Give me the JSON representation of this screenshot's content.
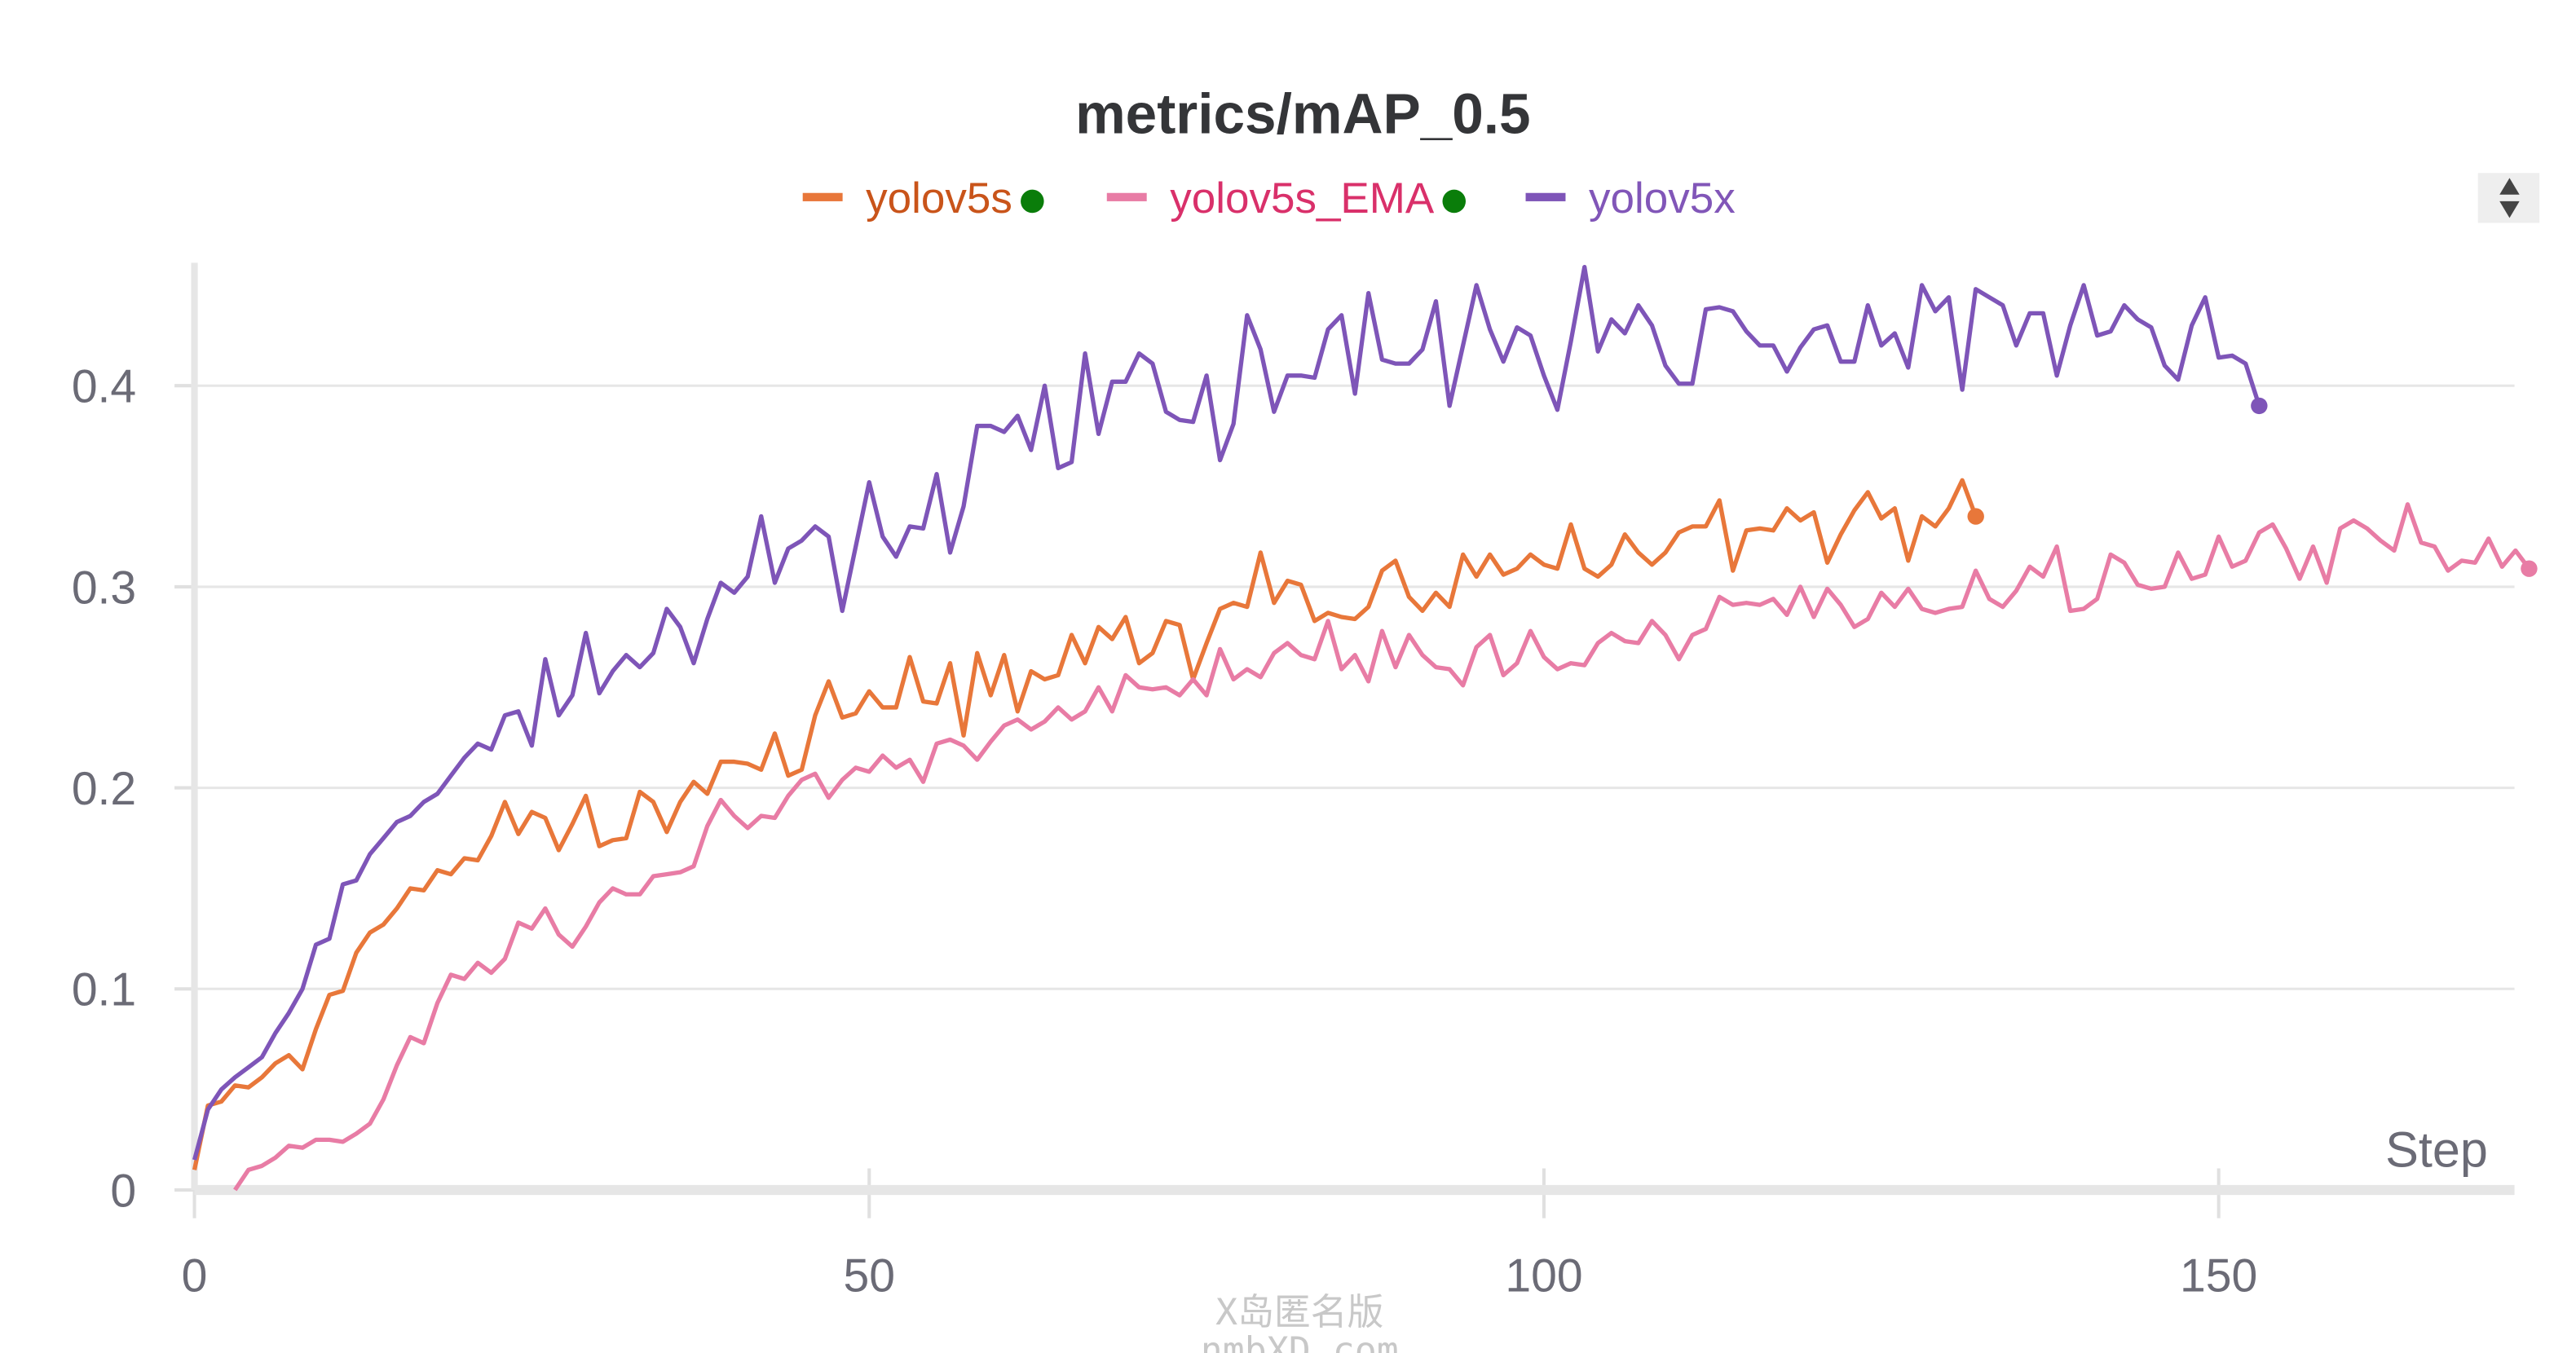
{
  "chart_data": {
    "type": "line",
    "title": "metrics/mAP_0.5",
    "xlabel": "Step",
    "ylabel": "",
    "xlim": [
      0,
      172
    ],
    "ylim": [
      0,
      0.46
    ],
    "xticks": [
      0,
      50,
      100,
      150
    ],
    "yticks": [
      0,
      0.1,
      0.2,
      0.3,
      0.4
    ],
    "ytick_labels": [
      "0",
      "0.1",
      "0.2",
      "0.3",
      "0.4"
    ],
    "xtick_labels": [
      "0",
      "50",
      "100",
      "150"
    ],
    "grid": true,
    "legend": "top-center",
    "series": [
      {
        "name": "yolov5s",
        "color": "#e8773a",
        "text_color": "#c9541a",
        "status_dot": "#0a7d0a",
        "start": 0,
        "values": [
          0.01,
          0.042,
          0.044,
          0.052,
          0.051,
          0.056,
          0.063,
          0.067,
          0.06,
          0.08,
          0.097,
          0.099,
          0.118,
          0.128,
          0.132,
          0.14,
          0.15,
          0.149,
          0.159,
          0.157,
          0.165,
          0.164,
          0.176,
          0.193,
          0.177,
          0.188,
          0.185,
          0.169,
          0.182,
          0.196,
          0.171,
          0.174,
          0.175,
          0.198,
          0.193,
          0.178,
          0.193,
          0.203,
          0.197,
          0.213,
          0.213,
          0.212,
          0.209,
          0.227,
          0.206,
          0.209,
          0.236,
          0.253,
          0.235,
          0.237,
          0.248,
          0.24,
          0.24,
          0.265,
          0.243,
          0.242,
          0.262,
          0.226,
          0.267,
          0.246,
          0.266,
          0.238,
          0.258,
          0.254,
          0.256,
          0.276,
          0.262,
          0.28,
          0.274,
          0.285,
          0.262,
          0.267,
          0.283,
          0.281,
          0.254,
          0.272,
          0.289,
          0.292,
          0.29,
          0.317,
          0.292,
          0.303,
          0.301,
          0.283,
          0.287,
          0.285,
          0.284,
          0.29,
          0.308,
          0.313,
          0.295,
          0.288,
          0.297,
          0.29,
          0.316,
          0.305,
          0.316,
          0.306,
          0.309,
          0.316,
          0.311,
          0.309,
          0.331,
          0.309,
          0.305,
          0.311,
          0.326,
          0.317,
          0.311,
          0.317,
          0.327,
          0.33,
          0.33,
          0.343,
          0.308,
          0.328,
          0.329,
          0.328,
          0.339,
          0.333,
          0.337,
          0.312,
          0.326,
          0.338,
          0.347,
          0.334,
          0.339,
          0.313,
          0.335,
          0.33,
          0.339,
          0.353,
          0.335
        ]
      },
      {
        "name": "yolov5s_EMA",
        "color": "#e87ca5",
        "text_color": "#d9306a",
        "status_dot": "#0a7d0a",
        "start": 3,
        "values": [
          0.0,
          0.01,
          0.012,
          0.016,
          0.022,
          0.021,
          0.025,
          0.025,
          0.024,
          0.028,
          0.033,
          0.045,
          0.062,
          0.076,
          0.073,
          0.093,
          0.107,
          0.105,
          0.113,
          0.108,
          0.115,
          0.133,
          0.13,
          0.14,
          0.127,
          0.121,
          0.131,
          0.143,
          0.15,
          0.147,
          0.147,
          0.156,
          0.157,
          0.158,
          0.161,
          0.181,
          0.194,
          0.186,
          0.18,
          0.186,
          0.185,
          0.196,
          0.204,
          0.207,
          0.195,
          0.204,
          0.21,
          0.208,
          0.216,
          0.21,
          0.214,
          0.203,
          0.222,
          0.224,
          0.221,
          0.214,
          0.223,
          0.231,
          0.234,
          0.229,
          0.233,
          0.24,
          0.234,
          0.238,
          0.25,
          0.238,
          0.256,
          0.25,
          0.249,
          0.25,
          0.246,
          0.254,
          0.246,
          0.269,
          0.254,
          0.259,
          0.255,
          0.267,
          0.272,
          0.266,
          0.264,
          0.283,
          0.259,
          0.266,
          0.253,
          0.278,
          0.26,
          0.276,
          0.266,
          0.26,
          0.259,
          0.251,
          0.27,
          0.276,
          0.256,
          0.262,
          0.278,
          0.265,
          0.259,
          0.262,
          0.261,
          0.272,
          0.277,
          0.273,
          0.272,
          0.283,
          0.276,
          0.264,
          0.276,
          0.279,
          0.295,
          0.291,
          0.292,
          0.291,
          0.294,
          0.286,
          0.3,
          0.285,
          0.299,
          0.291,
          0.28,
          0.284,
          0.297,
          0.29,
          0.299,
          0.289,
          0.287,
          0.289,
          0.29,
          0.308,
          0.294,
          0.29,
          0.298,
          0.31,
          0.305,
          0.32,
          0.288,
          0.289,
          0.294,
          0.316,
          0.312,
          0.301,
          0.299,
          0.3,
          0.317,
          0.304,
          0.306,
          0.325,
          0.31,
          0.313,
          0.327,
          0.331,
          0.319,
          0.304,
          0.32,
          0.302,
          0.329,
          0.333,
          0.329,
          0.323,
          0.318,
          0.341,
          0.322,
          0.32,
          0.308,
          0.313,
          0.312,
          0.324,
          0.31,
          0.318,
          0.309
        ]
      },
      {
        "name": "yolov5x",
        "color": "#7e55b8",
        "text_color": "#8156b8",
        "start": 0,
        "values": [
          0.015,
          0.04,
          0.05,
          0.056,
          0.061,
          0.066,
          0.078,
          0.088,
          0.1,
          0.122,
          0.125,
          0.152,
          0.154,
          0.167,
          0.175,
          0.183,
          0.186,
          0.193,
          0.197,
          0.206,
          0.215,
          0.222,
          0.219,
          0.236,
          0.238,
          0.221,
          0.264,
          0.236,
          0.246,
          0.277,
          0.247,
          0.258,
          0.266,
          0.26,
          0.267,
          0.289,
          0.28,
          0.262,
          0.284,
          0.302,
          0.297,
          0.305,
          0.335,
          0.302,
          0.319,
          0.323,
          0.33,
          0.325,
          0.288,
          0.32,
          0.352,
          0.325,
          0.315,
          0.33,
          0.329,
          0.356,
          0.317,
          0.34,
          0.38,
          0.38,
          0.377,
          0.385,
          0.368,
          0.4,
          0.359,
          0.362,
          0.416,
          0.376,
          0.402,
          0.402,
          0.416,
          0.411,
          0.387,
          0.383,
          0.382,
          0.405,
          0.363,
          0.381,
          0.435,
          0.418,
          0.387,
          0.405,
          0.405,
          0.404,
          0.428,
          0.435,
          0.396,
          0.446,
          0.413,
          0.411,
          0.411,
          0.418,
          0.442,
          0.39,
          0.42,
          0.45,
          0.428,
          0.412,
          0.429,
          0.425,
          0.405,
          0.388,
          0.422,
          0.459,
          0.417,
          0.433,
          0.426,
          0.44,
          0.43,
          0.41,
          0.401,
          0.401,
          0.438,
          0.439,
          0.437,
          0.427,
          0.42,
          0.42,
          0.407,
          0.419,
          0.428,
          0.43,
          0.412,
          0.412,
          0.44,
          0.42,
          0.426,
          0.409,
          0.45,
          0.437,
          0.444,
          0.398,
          0.448,
          0.444,
          0.44,
          0.42,
          0.436,
          0.436,
          0.405,
          0.43,
          0.45,
          0.425,
          0.427,
          0.44,
          0.433,
          0.429,
          0.41,
          0.403,
          0.43,
          0.444,
          0.414,
          0.415,
          0.411,
          0.39
        ]
      }
    ]
  },
  "watermark": {
    "line1": "X岛匿名版",
    "line2": "nmbXD.com"
  }
}
